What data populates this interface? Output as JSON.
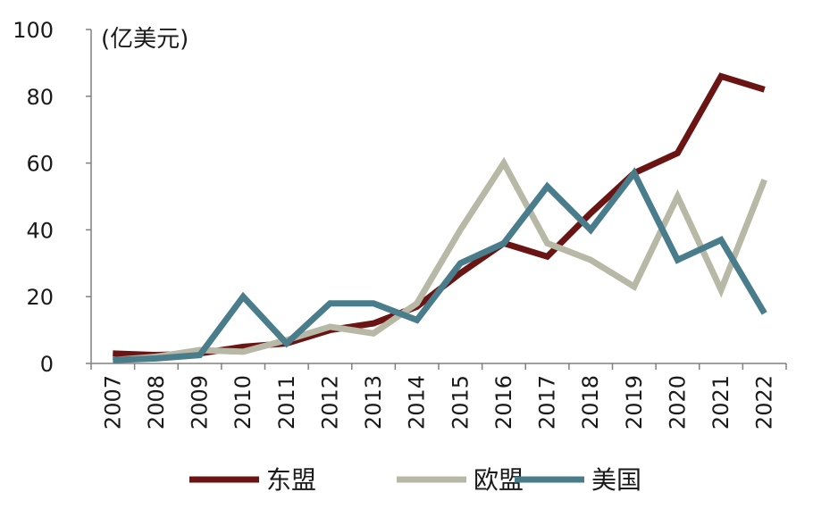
{
  "chart_data": {
    "type": "line",
    "unit_label": "(亿美元)",
    "categories": [
      "2007",
      "2008",
      "2009",
      "2010",
      "2011",
      "2012",
      "2013",
      "2014",
      "2015",
      "2016",
      "2017",
      "2018",
      "2019",
      "2020",
      "2021",
      "2022"
    ],
    "ylim": [
      0,
      100
    ],
    "yticks": [
      0,
      20,
      40,
      60,
      80,
      100
    ],
    "grid": false,
    "legend_position": "bottom",
    "series": [
      {
        "name": "东盟",
        "color": "#6b1414",
        "values": [
          3,
          2.5,
          3,
          5,
          6,
          10,
          12,
          17,
          27,
          36,
          32,
          45,
          57,
          63,
          86,
          82
        ]
      },
      {
        "name": "欧盟",
        "color": "#b8b8a6",
        "values": [
          1,
          2,
          4,
          3.5,
          7,
          11,
          9,
          18,
          40,
          60,
          36,
          31,
          23,
          50,
          22,
          55
        ]
      },
      {
        "name": "美国",
        "color": "#4a7d8c",
        "values": [
          1,
          1.5,
          2.5,
          20,
          6,
          18,
          18,
          13,
          30,
          36,
          53,
          40,
          57,
          31,
          37,
          15
        ]
      }
    ]
  }
}
